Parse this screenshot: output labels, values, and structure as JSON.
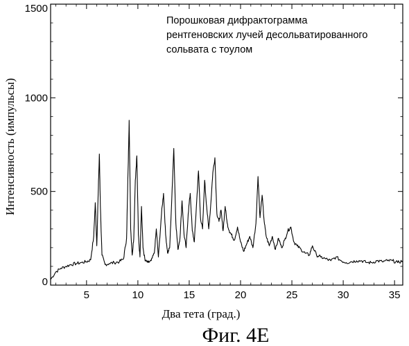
{
  "chart_data": {
    "type": "line",
    "title": "",
    "annotation_lines": [
      "Порошковая дифрактограмма",
      "рентгеновских лучей десольватированного",
      "сольвата с тоулом"
    ],
    "xlabel": "Два тета (град.)",
    "ylabel": "Интенсивность (импульсы)",
    "xlim": [
      1.5,
      35.8
    ],
    "ylim": [
      0,
      1500
    ],
    "xticks": [
      5,
      10,
      15,
      20,
      25,
      30,
      35
    ],
    "xtick_labels": [
      "5",
      "10",
      "15",
      "20",
      "25",
      "30",
      "35"
    ],
    "yticks": [
      0,
      500,
      1000,
      1500
    ],
    "ytick_labels": [
      "0",
      "500",
      "1000",
      "1500"
    ],
    "grid": false,
    "legend": "none",
    "series": [
      {
        "x": [
          1.5,
          2.0,
          2.5,
          3.0,
          3.5,
          4.0,
          4.5,
          5.0,
          5.4,
          5.7,
          5.85,
          6.0,
          6.15,
          6.25,
          6.35,
          6.5,
          6.8,
          7.2,
          7.7,
          8.2,
          8.6,
          8.9,
          9.05,
          9.15,
          9.3,
          9.45,
          9.6,
          9.75,
          9.9,
          10.05,
          10.2,
          10.35,
          10.5,
          10.7,
          11.0,
          11.3,
          11.6,
          11.8,
          12.0,
          12.3,
          12.5,
          12.7,
          12.9,
          13.1,
          13.3,
          13.5,
          13.7,
          13.9,
          14.1,
          14.3,
          14.5,
          14.7,
          14.9,
          15.1,
          15.3,
          15.5,
          15.7,
          15.9,
          16.1,
          16.3,
          16.5,
          16.7,
          16.9,
          17.1,
          17.3,
          17.5,
          17.7,
          17.9,
          18.1,
          18.3,
          18.5,
          18.7,
          18.9,
          19.1,
          19.4,
          19.7,
          20.0,
          20.3,
          20.6,
          20.9,
          21.2,
          21.5,
          21.7,
          21.9,
          22.1,
          22.3,
          22.5,
          22.8,
          23.1,
          23.4,
          23.7,
          24.0,
          24.3,
          24.6,
          24.9,
          25.2,
          25.5,
          25.9,
          26.3,
          26.7,
          27.0,
          27.4,
          27.8,
          28.3,
          28.8,
          29.3,
          29.8,
          30.3,
          30.8,
          31.3,
          31.8,
          32.3,
          32.8,
          33.3,
          33.8,
          34.3,
          34.8,
          35.3,
          35.8
        ],
        "y": [
          30,
          70,
          90,
          100,
          110,
          115,
          120,
          125,
          135,
          260,
          440,
          210,
          520,
          700,
          420,
          160,
          110,
          115,
          120,
          125,
          140,
          250,
          620,
          880,
          300,
          160,
          250,
          560,
          690,
          270,
          150,
          420,
          200,
          130,
          120,
          130,
          170,
          300,
          150,
          380,
          490,
          270,
          170,
          200,
          460,
          730,
          330,
          190,
          250,
          450,
          270,
          200,
          380,
          490,
          290,
          230,
          420,
          610,
          360,
          300,
          560,
          420,
          300,
          430,
          600,
          680,
          380,
          340,
          400,
          290,
          420,
          330,
          290,
          270,
          240,
          310,
          230,
          180,
          220,
          260,
          200,
          330,
          580,
          360,
          480,
          340,
          260,
          210,
          260,
          190,
          250,
          200,
          240,
          290,
          310,
          230,
          210,
          190,
          170,
          160,
          210,
          160,
          150,
          140,
          130,
          150,
          130,
          120,
          125,
          130,
          130,
          120,
          120,
          130,
          125,
          130,
          130,
          120,
          130
        ]
      }
    ]
  },
  "figure_caption": "Фиг. 4Е"
}
